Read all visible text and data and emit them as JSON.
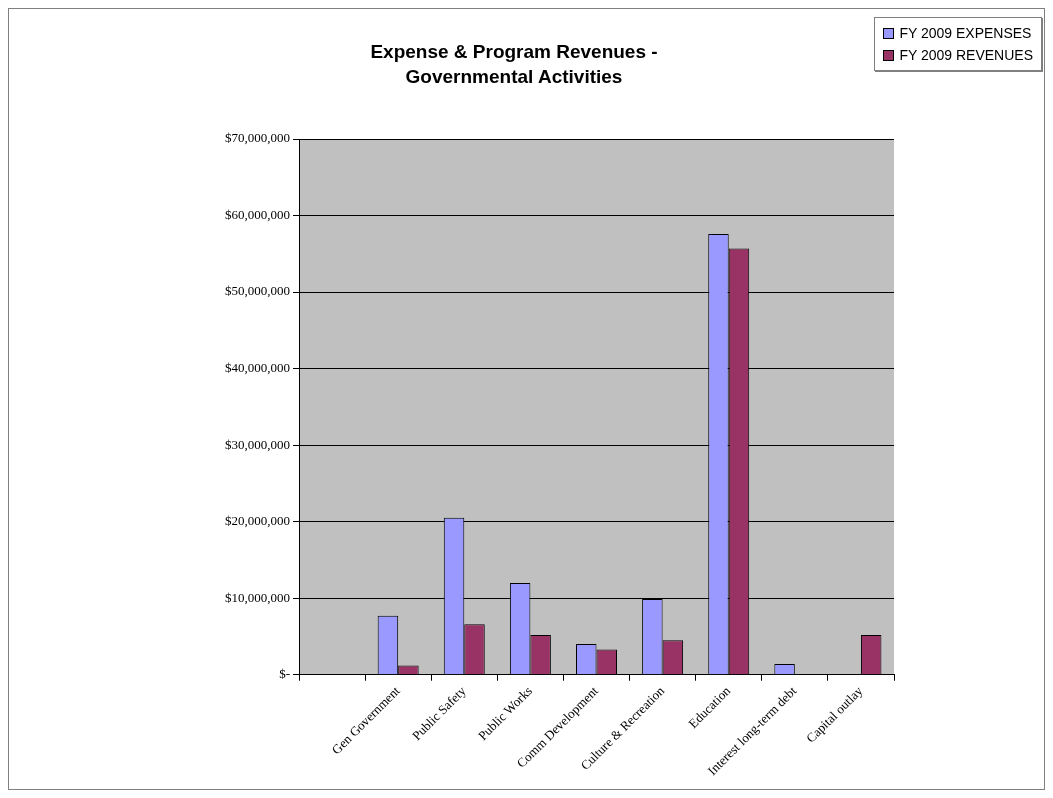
{
  "chart_data": {
    "type": "bar",
    "title": "Expense & Program Revenues - Governmental Activities",
    "categories": [
      null,
      "Gen Government",
      "Public Safety",
      "Public Works",
      "Comm Development",
      "Culture & Recreation",
      "Education",
      "Interest long-term debt",
      "Capital outlay"
    ],
    "series": [
      {
        "name": "FY 2009 EXPENSES",
        "color": "#9999ff",
        "values": [
          null,
          7700000,
          20500000,
          12000000,
          4000000,
          9900000,
          57600000,
          1400000,
          null
        ]
      },
      {
        "name": "FY 2009 REVENUES",
        "color": "#993366",
        "values": [
          null,
          1200000,
          6600000,
          5200000,
          3300000,
          4500000,
          55700000,
          null,
          5200000
        ]
      }
    ],
    "ylim": [
      0,
      70000000
    ],
    "yticks": [
      {
        "value": 0,
        "label": "$-"
      },
      {
        "value": 10000000,
        "label": "$10,000,000"
      },
      {
        "value": 20000000,
        "label": "$20,000,000"
      },
      {
        "value": 30000000,
        "label": "$30,000,000"
      },
      {
        "value": 40000000,
        "label": "$40,000,000"
      },
      {
        "value": 50000000,
        "label": "$50,000,000"
      },
      {
        "value": 60000000,
        "label": "$60,000,000"
      },
      {
        "value": 70000000,
        "label": "$70,000,000"
      }
    ],
    "grid": "y",
    "legend": "top right"
  }
}
